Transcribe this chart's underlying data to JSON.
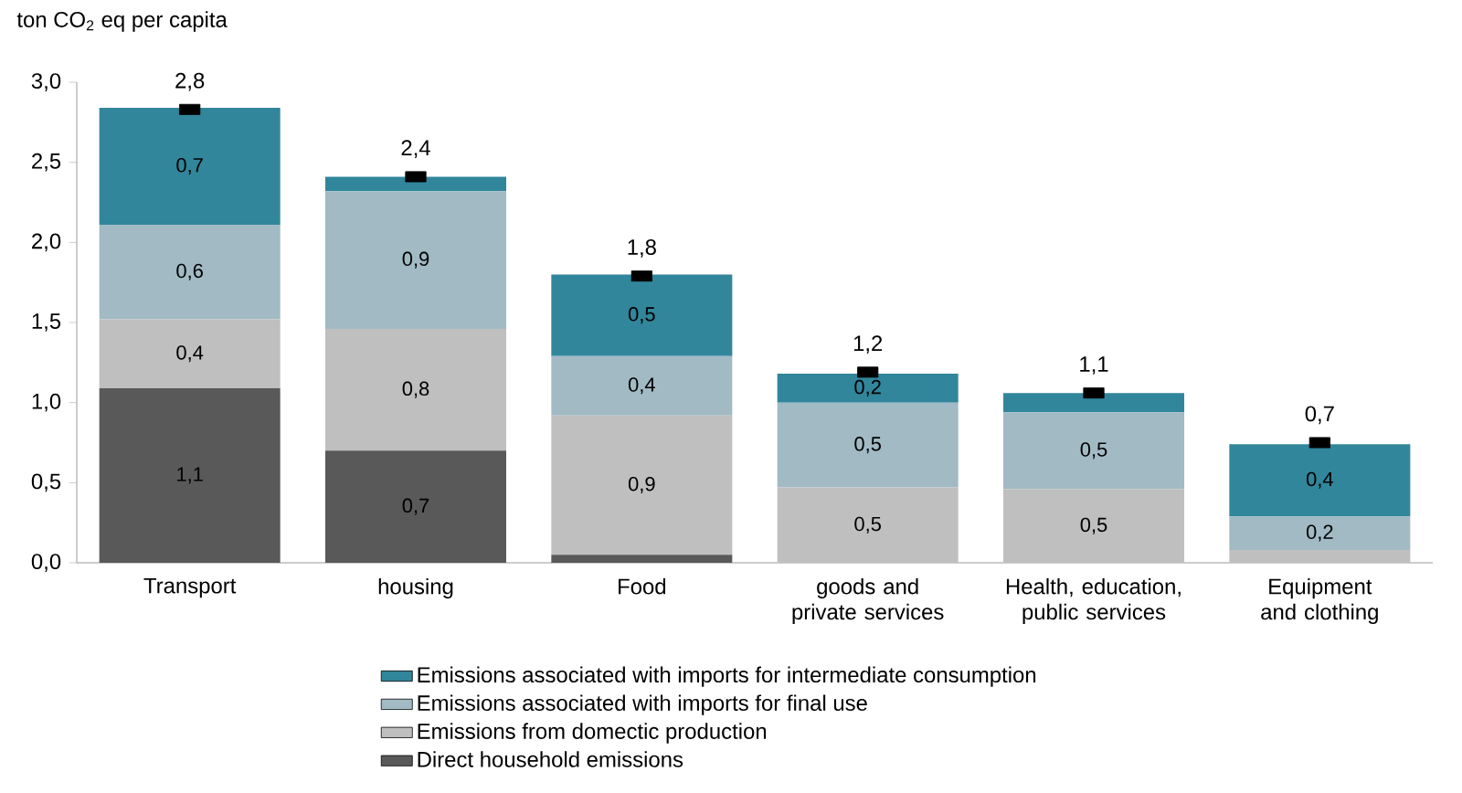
{
  "chart_data": {
    "type": "bar",
    "stacked": true,
    "ylabel": "ton CO$_{2}$ eq per capita",
    "categories": [
      "Transport",
      "housing",
      "Food",
      "goods and private services",
      "Health, education, public services",
      "Equipment and clothing"
    ],
    "ylim": [
      0,
      3
    ],
    "yticks": [
      {
        "value": 0,
        "label": "0,0"
      },
      {
        "value": 0.5,
        "label": "0,5"
      },
      {
        "value": 1,
        "label": "1,0"
      },
      {
        "value": 1.5,
        "label": "1,5"
      },
      {
        "value": 2,
        "label": "2,0"
      },
      {
        "value": 2.5,
        "label": "2,5"
      },
      {
        "value": 3,
        "label": "3,0"
      }
    ],
    "series": [
      {
        "name": "Direct household emissions",
        "color": "#595959",
        "values": [
          1.09,
          0.7,
          0.05,
          0,
          0,
          0
        ],
        "value_labels": [
          "1,1",
          "0,7",
          null,
          null,
          null,
          null
        ]
      },
      {
        "name": "Emissions from domectic production",
        "color": "#bfbfbf",
        "values": [
          0.43,
          0.76,
          0.87,
          0.47,
          0.46,
          0.08
        ],
        "value_labels": [
          "0,4",
          "0,8",
          "0,9",
          "0,5",
          "0,5",
          null
        ]
      },
      {
        "name": "Emissions associated with imports for final use",
        "color": "#a1bac4",
        "values": [
          0.59,
          0.86,
          0.37,
          0.53,
          0.48,
          0.21
        ],
        "value_labels": [
          "0,6",
          "0,9",
          "0,4",
          "0,5",
          "0,5",
          "0,2"
        ]
      },
      {
        "name": "Emissions associated with imports for intermediate consumption",
        "color": "#31869b",
        "values": [
          0.73,
          0.09,
          0.51,
          0.18,
          0.12,
          0.45
        ],
        "value_labels": [
          "0,7",
          null,
          "0,5",
          "0,2",
          null,
          "0,4"
        ]
      },
      {
        "type": "scatter",
        "color": "#000000",
        "x": [
          "Transport",
          "housing",
          "Food",
          "goods and private services",
          "Health, education, public services",
          "Equipment and clothing"
        ],
        "values": [
          2.83,
          2.41,
          1.79,
          1.19,
          1.06,
          0.75
        ]
      }
    ],
    "totals": [
      "2,8",
      "2,4",
      "1,8",
      "1,2",
      "1,1",
      "0,7"
    ],
    "legend": "bottom",
    "grid": false
  }
}
